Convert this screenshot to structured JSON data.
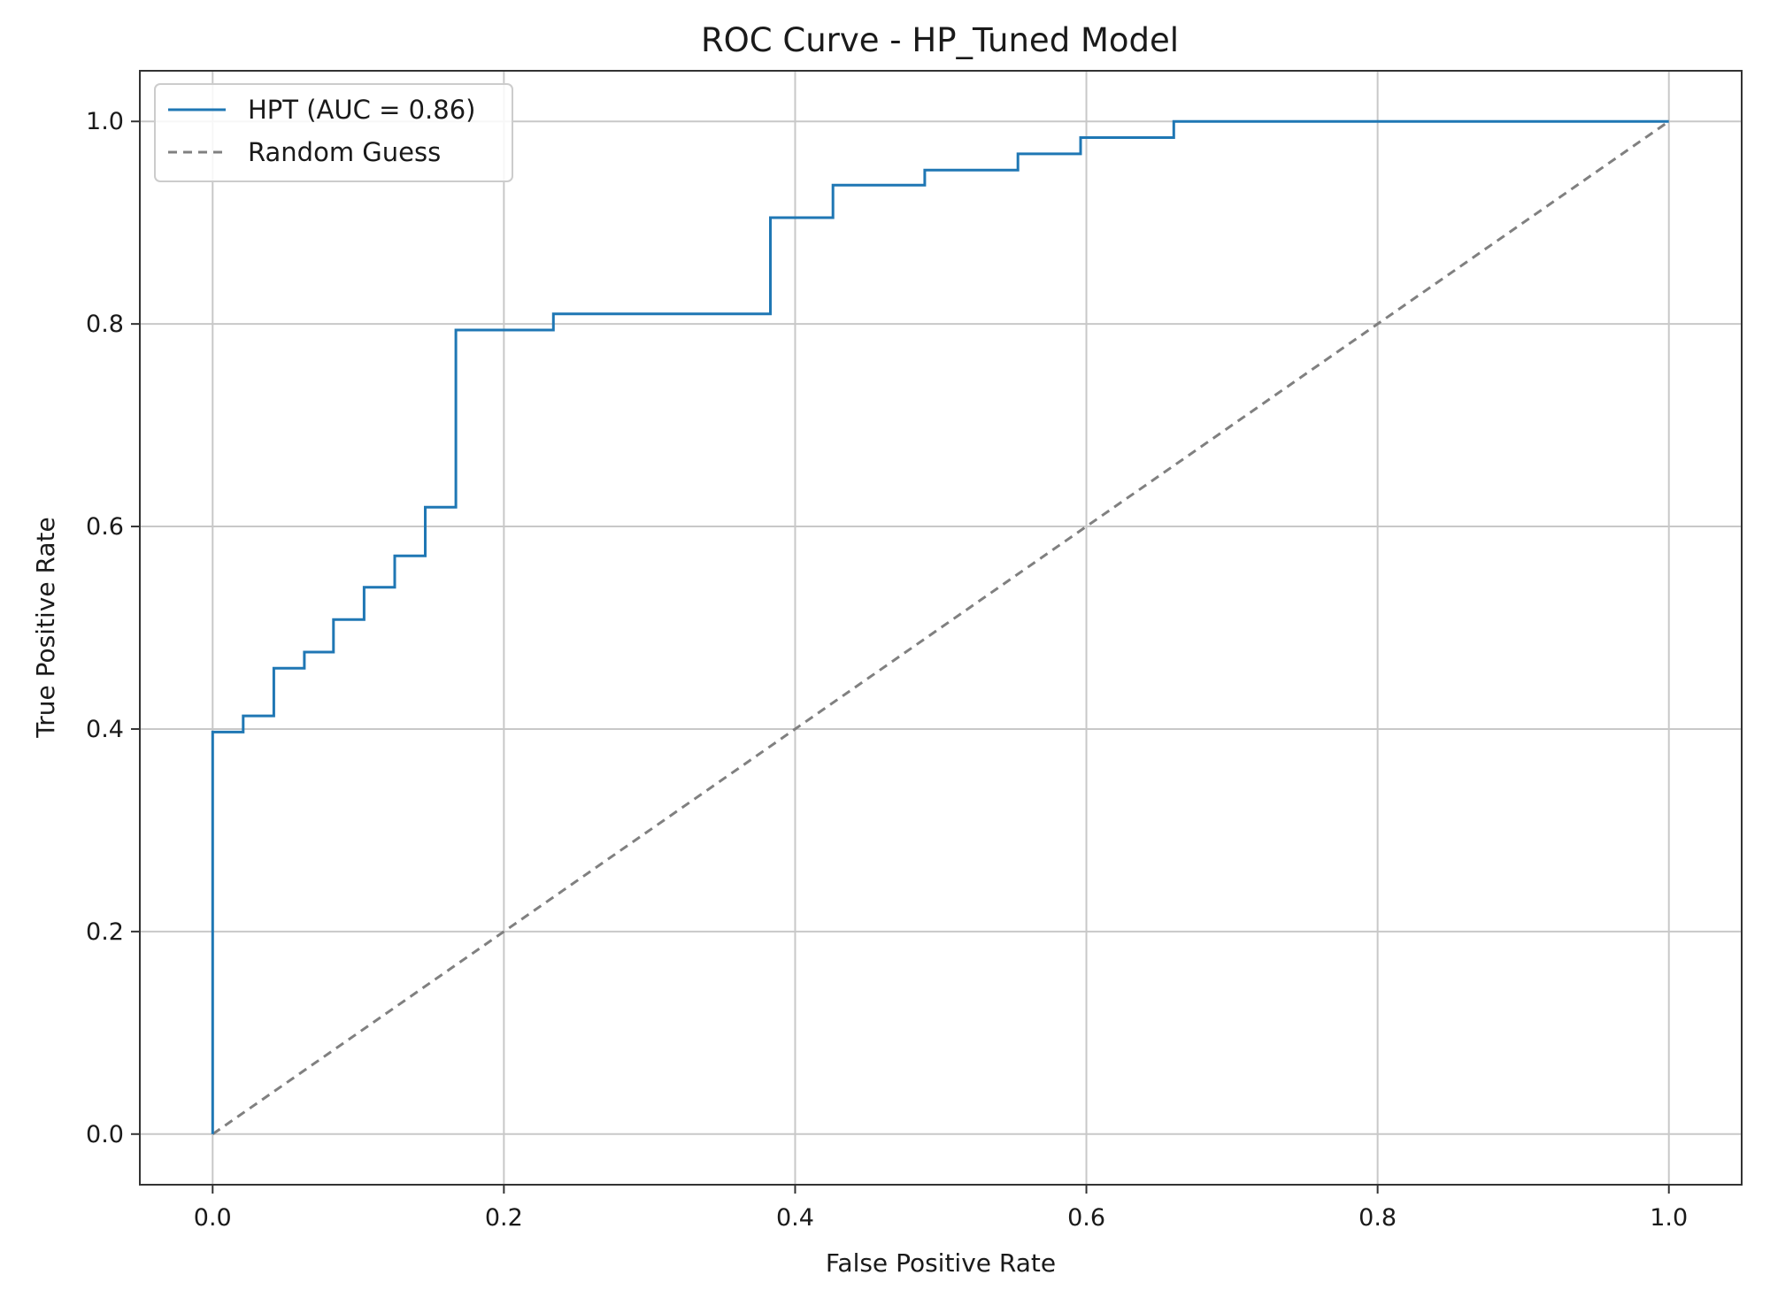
{
  "chart_data": {
    "type": "line",
    "title": "ROC Curve - HP_Tuned Model",
    "xlabel": "False Positive Rate",
    "ylabel": "True Positive Rate",
    "xlim": [
      -0.05,
      1.05
    ],
    "ylim": [
      -0.05,
      1.05
    ],
    "xticks": [
      "0.0",
      "0.2",
      "0.4",
      "0.6",
      "0.8",
      "1.0"
    ],
    "yticks": [
      "0.0",
      "0.2",
      "0.4",
      "0.6",
      "0.8",
      "1.0"
    ],
    "grid": true,
    "legend_position": "upper-left",
    "series": [
      {
        "name": "HPT (AUC = 0.86)",
        "style": "solid-step",
        "color": "#1f77b4",
        "x": [
          0.0,
          0.0,
          0.021,
          0.021,
          0.042,
          0.042,
          0.063,
          0.063,
          0.083,
          0.083,
          0.104,
          0.104,
          0.125,
          0.125,
          0.146,
          0.146,
          0.167,
          0.167,
          0.234,
          0.234,
          0.383,
          0.383,
          0.426,
          0.426,
          0.489,
          0.489,
          0.553,
          0.553,
          0.596,
          0.596,
          0.66,
          0.66,
          1.0
        ],
        "y": [
          0.0,
          0.397,
          0.397,
          0.413,
          0.413,
          0.46,
          0.46,
          0.476,
          0.476,
          0.508,
          0.508,
          0.54,
          0.54,
          0.571,
          0.571,
          0.619,
          0.619,
          0.794,
          0.794,
          0.81,
          0.81,
          0.905,
          0.905,
          0.937,
          0.937,
          0.952,
          0.952,
          0.968,
          0.968,
          0.984,
          0.984,
          1.0,
          1.0
        ]
      },
      {
        "name": "Random Guess",
        "style": "dashed",
        "color": "#808080",
        "x": [
          0.0,
          1.0
        ],
        "y": [
          0.0,
          1.0
        ]
      }
    ]
  }
}
